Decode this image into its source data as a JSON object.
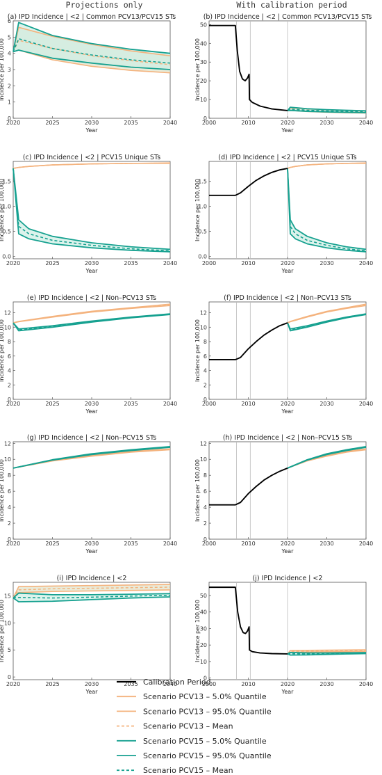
{
  "header": {
    "left": "Projections only",
    "right": "With calibration period"
  },
  "colors": {
    "calibration": "#000000",
    "pcv13": "#f4b37e",
    "pcv15": "#16a190",
    "pcv13_fill": "#dfe3c9",
    "pcv15_fill": "#cdeee4"
  },
  "chart_data": [
    {
      "id": "a",
      "type": "line",
      "title": "(a) IPD Incidence | <2 | Common PCV13/PCV15 STs",
      "xlabel": "Year",
      "ylabel": "Incidence per 100,000",
      "xlim": [
        2020,
        2040
      ],
      "ylim": [
        0,
        6
      ],
      "xticks": [
        2020,
        2025,
        2030,
        2035,
        2040
      ],
      "yticks": [
        0,
        1,
        2,
        3,
        4,
        5,
        6
      ],
      "x": [
        2020,
        2020.7,
        2025,
        2030,
        2035,
        2040
      ],
      "series": {
        "pcv13_q05": [
          4.1,
          4.2,
          3.6,
          3.2,
          2.95,
          2.8
        ],
        "pcv13_q95": [
          4.1,
          5.6,
          5.05,
          4.55,
          4.15,
          3.85
        ],
        "pcv13_mean": [
          4.1,
          4.8,
          4.3,
          3.85,
          3.55,
          3.3
        ],
        "pcv15_q05": [
          4.1,
          4.2,
          3.7,
          3.4,
          3.15,
          3.0
        ],
        "pcv15_q95": [
          4.1,
          5.9,
          5.1,
          4.6,
          4.25,
          4.0
        ],
        "pcv15_mean": [
          4.1,
          4.9,
          4.3,
          3.9,
          3.6,
          3.4
        ]
      }
    },
    {
      "id": "b",
      "type": "line",
      "title": "(b) IPD Incidence | <2 | Common PCV13/PCV15 STs",
      "xlabel": "Year",
      "ylabel": "Incidence per 100,000",
      "xlim": [
        2000,
        2040
      ],
      "ylim": [
        0,
        52
      ],
      "xticks": [
        2000,
        2010,
        2020,
        2030,
        2040
      ],
      "yticks": [
        0,
        10,
        20,
        30,
        40,
        50
      ],
      "vlines": [
        2007,
        2010.5,
        2020
      ],
      "calibration": {
        "x": [
          2000,
          2006.7,
          2007.2,
          2007.8,
          2008.5,
          2009.2,
          2009.8,
          2010.2,
          2010.3,
          2011,
          2013,
          2016,
          2020
        ],
        "y": [
          49.5,
          49.5,
          36,
          25,
          21,
          20,
          21.5,
          23.5,
          10,
          8.5,
          6.5,
          5,
          4.1
        ]
      },
      "x": [
        2020,
        2020.7,
        2025,
        2030,
        2035,
        2040
      ],
      "series": {
        "pcv13_q05": [
          4.1,
          4.2,
          3.6,
          3.2,
          2.95,
          2.8
        ],
        "pcv13_q95": [
          4.1,
          5.6,
          5.05,
          4.55,
          4.15,
          3.85
        ],
        "pcv13_mean": [
          4.1,
          4.8,
          4.3,
          3.85,
          3.55,
          3.3
        ],
        "pcv15_q05": [
          4.1,
          4.2,
          3.7,
          3.4,
          3.15,
          3.0
        ],
        "pcv15_q95": [
          4.1,
          5.9,
          5.1,
          4.6,
          4.25,
          4.0
        ],
        "pcv15_mean": [
          4.1,
          4.9,
          4.3,
          3.9,
          3.6,
          3.4
        ]
      }
    },
    {
      "id": "c",
      "type": "line",
      "title": "(c) IPD Incidence | <2 | PCV15 Unique STs",
      "xlabel": "Year",
      "ylabel": "Incidence per 100,000",
      "xlim": [
        2020,
        2040
      ],
      "ylim": [
        -0.05,
        1.9
      ],
      "xticks": [
        2020,
        2025,
        2030,
        2035,
        2040
      ],
      "yticks": [
        0.0,
        0.5,
        1.0,
        1.5
      ],
      "x": [
        2020,
        2020.7,
        2022,
        2025,
        2030,
        2035,
        2040
      ],
      "series": {
        "pcv13_q05": [
          1.76,
          1.78,
          1.8,
          1.83,
          1.85,
          1.86,
          1.86
        ],
        "pcv13_q95": [
          1.76,
          1.78,
          1.8,
          1.83,
          1.85,
          1.86,
          1.87
        ],
        "pcv13_mean": [
          1.76,
          1.78,
          1.8,
          1.83,
          1.85,
          1.86,
          1.865
        ],
        "pcv15_q05": [
          1.76,
          0.45,
          0.35,
          0.25,
          0.17,
          0.12,
          0.09
        ],
        "pcv15_q95": [
          1.76,
          0.73,
          0.55,
          0.4,
          0.27,
          0.19,
          0.14
        ],
        "pcv15_mean": [
          1.76,
          0.6,
          0.45,
          0.32,
          0.22,
          0.15,
          0.11
        ]
      }
    },
    {
      "id": "d",
      "type": "line",
      "title": "(d) IPD Incidence | <2 | PCV15 Unique STs",
      "xlabel": "Year",
      "ylabel": "Incidence per 100,000",
      "xlim": [
        2000,
        2040
      ],
      "ylim": [
        -0.05,
        1.9
      ],
      "xticks": [
        2000,
        2010,
        2020,
        2030,
        2040
      ],
      "yticks": [
        0.0,
        0.5,
        1.0,
        1.5
      ],
      "vlines": [
        2007,
        2010.5,
        2020
      ],
      "calibration": {
        "x": [
          2000,
          2006.7,
          2008,
          2010,
          2012,
          2014,
          2016,
          2018,
          2020
        ],
        "y": [
          1.22,
          1.22,
          1.27,
          1.4,
          1.52,
          1.61,
          1.68,
          1.73,
          1.76
        ]
      },
      "x": [
        2020,
        2020.7,
        2022,
        2025,
        2030,
        2035,
        2040
      ],
      "series": {
        "pcv13_q05": [
          1.76,
          1.78,
          1.8,
          1.83,
          1.85,
          1.86,
          1.86
        ],
        "pcv13_q95": [
          1.76,
          1.78,
          1.8,
          1.83,
          1.85,
          1.86,
          1.87
        ],
        "pcv13_mean": [
          1.76,
          1.78,
          1.8,
          1.83,
          1.85,
          1.86,
          1.865
        ],
        "pcv15_q05": [
          1.76,
          0.45,
          0.35,
          0.25,
          0.17,
          0.12,
          0.09
        ],
        "pcv15_q95": [
          1.76,
          0.73,
          0.55,
          0.4,
          0.27,
          0.19,
          0.14
        ],
        "pcv15_mean": [
          1.76,
          0.6,
          0.45,
          0.32,
          0.22,
          0.15,
          0.11
        ]
      }
    },
    {
      "id": "e",
      "type": "line",
      "title": "(e) IPD Incidence | <2 | Non–PCV13 STs",
      "xlabel": "Year",
      "ylabel": "Incidence per 100,000",
      "xlim": [
        2020,
        2040
      ],
      "ylim": [
        0,
        13.5
      ],
      "xticks": [
        2020,
        2025,
        2030,
        2035,
        2040
      ],
      "yticks": [
        0,
        2,
        4,
        6,
        8,
        10,
        12
      ],
      "x": [
        2020,
        2020.7,
        2025,
        2030,
        2035,
        2040
      ],
      "series": {
        "pcv13_q05": [
          10.6,
          10.75,
          11.4,
          12.1,
          12.6,
          13.0
        ],
        "pcv13_q95": [
          10.6,
          10.8,
          11.5,
          12.2,
          12.7,
          13.2
        ],
        "pcv13_mean": [
          10.6,
          10.78,
          11.45,
          12.15,
          12.65,
          13.1
        ],
        "pcv15_q05": [
          10.6,
          9.5,
          10.0,
          10.7,
          11.3,
          11.75
        ],
        "pcv15_q95": [
          10.6,
          9.75,
          10.2,
          10.85,
          11.4,
          11.85
        ],
        "pcv15_mean": [
          10.6,
          9.62,
          10.1,
          10.78,
          11.35,
          11.8
        ]
      }
    },
    {
      "id": "f",
      "type": "line",
      "title": "(f) IPD Incidence | <2 | Non–PCV13 STs",
      "xlabel": "Year",
      "ylabel": "Incidence per 100,000",
      "xlim": [
        2000,
        2040
      ],
      "ylim": [
        0,
        13.5
      ],
      "xticks": [
        2000,
        2010,
        2020,
        2030,
        2040
      ],
      "yticks": [
        0,
        2,
        4,
        6,
        8,
        10,
        12
      ],
      "vlines": [
        2007,
        2010.5,
        2020
      ],
      "calibration": {
        "x": [
          2000,
          2006.7,
          2008,
          2010,
          2012,
          2014,
          2016,
          2018,
          2020
        ],
        "y": [
          5.5,
          5.5,
          5.8,
          7.0,
          8.0,
          8.9,
          9.6,
          10.2,
          10.6
        ]
      },
      "x": [
        2020,
        2020.7,
        2025,
        2030,
        2035,
        2040
      ],
      "series": {
        "pcv13_q05": [
          10.6,
          10.75,
          11.4,
          12.1,
          12.6,
          13.0
        ],
        "pcv13_q95": [
          10.6,
          10.8,
          11.5,
          12.2,
          12.7,
          13.2
        ],
        "pcv13_mean": [
          10.6,
          10.78,
          11.45,
          12.15,
          12.65,
          13.1
        ],
        "pcv15_q05": [
          10.6,
          9.5,
          10.0,
          10.7,
          11.3,
          11.75
        ],
        "pcv15_q95": [
          10.6,
          9.75,
          10.2,
          10.85,
          11.4,
          11.85
        ],
        "pcv15_mean": [
          10.6,
          9.62,
          10.1,
          10.78,
          11.35,
          11.8
        ]
      }
    },
    {
      "id": "g",
      "type": "line",
      "title": "(g) IPD Incidence | <2 | Non–PCV15 STs",
      "xlabel": "Year",
      "ylabel": "Incidence per 100,000",
      "xlim": [
        2020,
        2040
      ],
      "ylim": [
        0,
        12.2
      ],
      "xticks": [
        2020,
        2025,
        2030,
        2035,
        2040
      ],
      "yticks": [
        0,
        2,
        4,
        6,
        8,
        10,
        12
      ],
      "x": [
        2020,
        2025,
        2030,
        2035,
        2040
      ],
      "series": {
        "pcv13_q05": [
          8.9,
          9.8,
          10.4,
          10.9,
          11.2
        ],
        "pcv13_q95": [
          8.9,
          9.85,
          10.5,
          11.0,
          11.3
        ],
        "pcv13_mean": [
          8.9,
          9.82,
          10.45,
          10.95,
          11.25
        ],
        "pcv15_q05": [
          8.9,
          9.9,
          10.6,
          11.1,
          11.5
        ],
        "pcv15_q95": [
          8.9,
          9.95,
          10.7,
          11.2,
          11.6
        ],
        "pcv15_mean": [
          8.9,
          9.92,
          10.65,
          11.15,
          11.55
        ]
      }
    },
    {
      "id": "h",
      "type": "line",
      "title": "(h) IPD Incidence | <2 | Non–PCV15 STs",
      "xlabel": "Year",
      "ylabel": "Incidence per 100,000",
      "xlim": [
        2000,
        2040
      ],
      "ylim": [
        0,
        12.2
      ],
      "xticks": [
        2000,
        2010,
        2020,
        2030,
        2040
      ],
      "yticks": [
        0,
        2,
        4,
        6,
        8,
        10,
        12
      ],
      "vlines": [
        2007,
        2010.5,
        2020
      ],
      "calibration": {
        "x": [
          2000,
          2006.7,
          2008,
          2010,
          2012,
          2014,
          2016,
          2018,
          2020
        ],
        "y": [
          4.3,
          4.3,
          4.6,
          5.7,
          6.6,
          7.4,
          8.0,
          8.5,
          8.9
        ]
      },
      "x": [
        2020,
        2025,
        2030,
        2035,
        2040
      ],
      "series": {
        "pcv13_q05": [
          8.9,
          9.8,
          10.4,
          10.9,
          11.2
        ],
        "pcv13_q95": [
          8.9,
          9.85,
          10.5,
          11.0,
          11.3
        ],
        "pcv13_mean": [
          8.9,
          9.82,
          10.45,
          10.95,
          11.25
        ],
        "pcv15_q05": [
          8.9,
          9.9,
          10.6,
          11.1,
          11.5
        ],
        "pcv15_q95": [
          8.9,
          9.95,
          10.7,
          11.2,
          11.6
        ],
        "pcv15_mean": [
          8.9,
          9.92,
          10.65,
          11.15,
          11.55
        ]
      }
    },
    {
      "id": "i",
      "type": "line",
      "title": "(i) IPD Incidence | <2",
      "xlabel": "Year",
      "ylabel": "Incidence per 100,000",
      "xlim": [
        2020,
        2040
      ],
      "ylim": [
        -0.5,
        17.5
      ],
      "xticks": [
        2020,
        2025,
        2030,
        2035,
        2040
      ],
      "yticks": [
        0,
        5,
        10,
        15
      ],
      "x": [
        2020,
        2020.7,
        2025,
        2030,
        2035,
        2040
      ],
      "series": {
        "pcv13_q05": [
          14.6,
          15.6,
          15.8,
          15.9,
          16.0,
          16.1
        ],
        "pcv13_q95": [
          14.6,
          16.7,
          16.8,
          16.9,
          17.0,
          17.1
        ],
        "pcv13_mean": [
          14.6,
          16.1,
          16.3,
          16.4,
          16.5,
          16.6
        ],
        "pcv15_q05": [
          14.6,
          13.9,
          14.0,
          14.3,
          14.6,
          14.8
        ],
        "pcv15_q95": [
          14.6,
          15.5,
          15.2,
          15.2,
          15.3,
          15.4
        ],
        "pcv15_mean": [
          14.6,
          14.7,
          14.6,
          14.75,
          14.95,
          15.1
        ]
      }
    },
    {
      "id": "j",
      "type": "line",
      "title": "(j) IPD Incidence | <2",
      "xlabel": "Year",
      "ylabel": "Incidence per 100,000",
      "xlim": [
        2000,
        2040
      ],
      "ylim": [
        -1,
        58
      ],
      "xticks": [
        2000,
        2010,
        2020,
        2030,
        2040
      ],
      "yticks": [
        0,
        10,
        20,
        30,
        40,
        50
      ],
      "vlines": [
        2007,
        2010.5,
        2020
      ],
      "calibration": {
        "x": [
          2000,
          2006.7,
          2007.3,
          2008,
          2008.7,
          2009.3,
          2009.8,
          2010.2,
          2010.3,
          2011,
          2013,
          2016,
          2020
        ],
        "y": [
          55,
          55,
          40,
          31,
          27.5,
          27,
          28.5,
          31,
          17,
          16,
          15.2,
          14.8,
          14.6
        ]
      },
      "x": [
        2020,
        2020.7,
        2025,
        2030,
        2035,
        2040
      ],
      "series": {
        "pcv13_q05": [
          14.6,
          15.6,
          15.8,
          15.9,
          16.0,
          16.1
        ],
        "pcv13_q95": [
          14.6,
          16.7,
          16.8,
          16.9,
          17.0,
          17.1
        ],
        "pcv13_mean": [
          14.6,
          16.1,
          16.3,
          16.4,
          16.5,
          16.6
        ],
        "pcv15_q05": [
          14.6,
          13.9,
          14.0,
          14.3,
          14.6,
          14.8
        ],
        "pcv15_q95": [
          14.6,
          15.5,
          15.2,
          15.2,
          15.3,
          15.4
        ],
        "pcv15_mean": [
          14.6,
          14.7,
          14.6,
          14.75,
          14.95,
          15.1
        ]
      }
    }
  ],
  "legend": [
    {
      "label": "Calibration Period",
      "color": "#000000",
      "style": "solid-thick"
    },
    {
      "label": "Scenario PCV13 – 5.0% Quantile",
      "color": "#f4b37e",
      "style": "solid"
    },
    {
      "label": "Scenario PCV13 – 95.0% Quantile",
      "color": "#f4b37e",
      "style": "solid"
    },
    {
      "label": "Scenario PCV13 – Mean",
      "color": "#f4b37e",
      "style": "dashed"
    },
    {
      "label": "Scenario PCV15 – 5.0% Quantile",
      "color": "#16a190",
      "style": "solid"
    },
    {
      "label": "Scenario PCV15 – 95.0% Quantile",
      "color": "#16a190",
      "style": "solid"
    },
    {
      "label": "Scenario PCV15 – Mean",
      "color": "#16a190",
      "style": "dashed"
    }
  ]
}
